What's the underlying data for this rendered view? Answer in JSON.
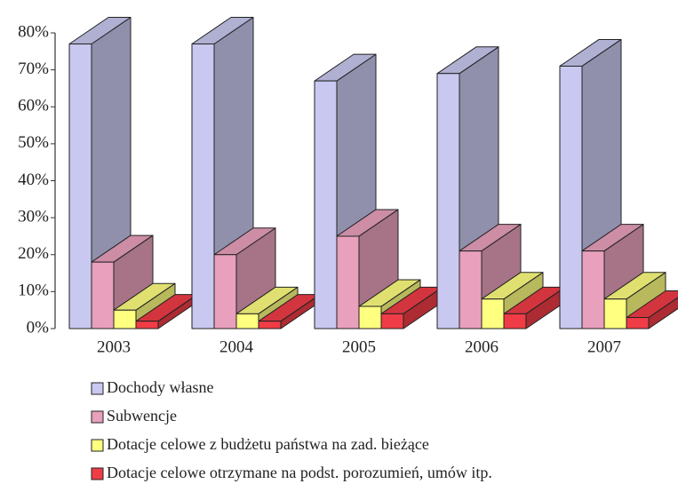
{
  "chart_data": {
    "type": "bar3d",
    "categories": [
      "2003",
      "2004",
      "2005",
      "2006",
      "2007"
    ],
    "series": [
      {
        "name": "Dochody własne",
        "color": "#c8c8f0",
        "values": [
          77,
          77,
          67,
          69,
          71
        ]
      },
      {
        "name": "Subwencje",
        "color": "#e8a0bc",
        "values": [
          18,
          20,
          25,
          21,
          21
        ]
      },
      {
        "name": "Dotacje celowe z budżetu państwa na zad. bieżące",
        "color": "#ffff80",
        "values": [
          5,
          4,
          6,
          8,
          8
        ]
      },
      {
        "name": "Dotacje celowe  otrzymane na podst. porozumień, umów itp.",
        "color": "#f03c46",
        "values": [
          2,
          2,
          4,
          4,
          3
        ]
      }
    ],
    "ylim": [
      0,
      80
    ],
    "yticks": [
      {
        "value": 0,
        "label": "0%"
      },
      {
        "value": 10,
        "label": "10%"
      },
      {
        "value": 20,
        "label": "20%"
      },
      {
        "value": 30,
        "label": "30%"
      },
      {
        "value": 40,
        "label": "40%"
      },
      {
        "value": 50,
        "label": "50%"
      },
      {
        "value": 60,
        "label": "60%"
      },
      {
        "value": 70,
        "label": "70%"
      },
      {
        "value": 80,
        "label": "80%"
      }
    ]
  }
}
